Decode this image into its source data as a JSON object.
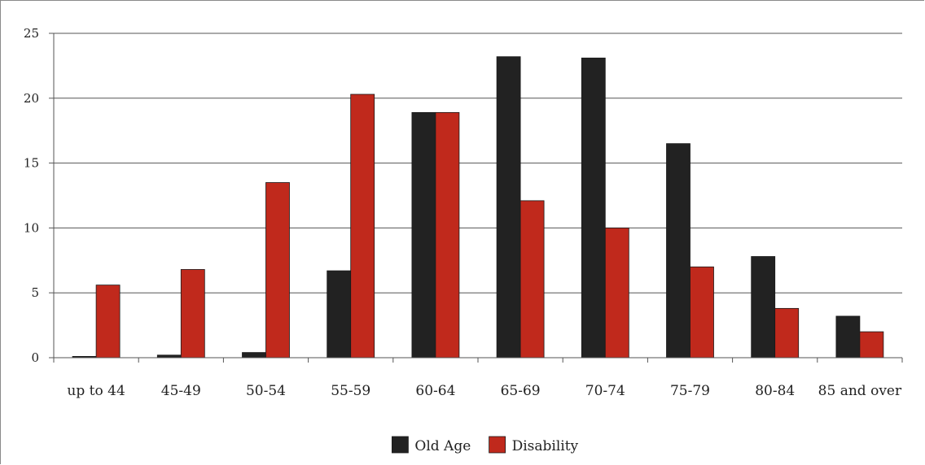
{
  "chart_data": {
    "type": "bar",
    "title": "",
    "xlabel": "",
    "ylabel": "",
    "ylim": [
      0,
      25
    ],
    "yticks": [
      0,
      5,
      10,
      15,
      20,
      25
    ],
    "grid": true,
    "legend_position": "bottom-center",
    "categories": [
      "up to 44",
      "45-49",
      "50-54",
      "55-59",
      "60-64",
      "65-69",
      "70-74",
      "75-79",
      "80-84",
      "85 and over"
    ],
    "series": [
      {
        "name": "Old Age",
        "color": "#222222",
        "values": [
          0.1,
          0.2,
          0.4,
          6.7,
          18.9,
          23.2,
          23.1,
          16.5,
          7.8,
          3.2
        ]
      },
      {
        "name": "Disability",
        "color": "#c0291c",
        "values": [
          5.6,
          6.8,
          13.5,
          20.3,
          18.9,
          12.1,
          10.0,
          7.0,
          3.8,
          2.0
        ]
      }
    ]
  }
}
